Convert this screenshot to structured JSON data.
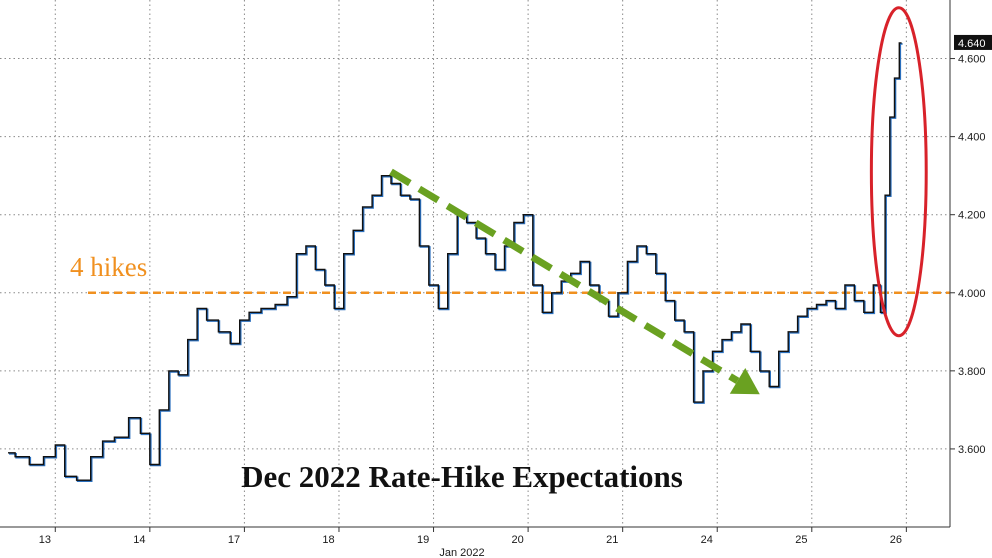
{
  "chart_data": {
    "type": "line",
    "title": "Dec 2022 Rate-Hike Expectations",
    "xlabel": "Jan 2022",
    "ylabel": "",
    "ylim": [
      3.4,
      4.75
    ],
    "yticks": [
      3.6,
      3.8,
      4.0,
      4.2,
      4.4,
      4.6
    ],
    "ytick_labels": [
      "3.600",
      "3.800",
      "4.000",
      "4.200",
      "4.400",
      "4.600"
    ],
    "x_categories": [
      "13",
      "14",
      "17",
      "18",
      "19",
      "20",
      "21",
      "24",
      "25",
      "26"
    ],
    "grid": true,
    "legend": "none",
    "last_value": 4.64,
    "last_value_label": "4.640",
    "series": [
      {
        "values": [
          [
            0.0,
            3.59
          ],
          [
            0.15,
            3.58
          ],
          [
            0.3,
            3.56
          ],
          [
            0.45,
            3.58
          ],
          [
            0.55,
            3.61
          ],
          [
            0.65,
            3.53
          ],
          [
            0.8,
            3.52
          ],
          [
            0.95,
            3.58
          ],
          [
            1.05,
            3.62
          ],
          [
            1.2,
            3.63
          ],
          [
            1.35,
            3.68
          ],
          [
            1.45,
            3.64
          ],
          [
            1.55,
            3.56
          ],
          [
            1.65,
            3.7
          ],
          [
            1.75,
            3.8
          ],
          [
            1.85,
            3.79
          ],
          [
            1.95,
            3.88
          ],
          [
            2.05,
            3.96
          ],
          [
            2.15,
            3.93
          ],
          [
            2.3,
            3.9
          ],
          [
            2.4,
            3.87
          ],
          [
            2.5,
            3.93
          ],
          [
            2.6,
            3.95
          ],
          [
            2.75,
            3.96
          ],
          [
            2.9,
            3.97
          ],
          [
            3.0,
            3.99
          ],
          [
            3.1,
            4.1
          ],
          [
            3.2,
            4.12
          ],
          [
            3.3,
            4.06
          ],
          [
            3.4,
            4.02
          ],
          [
            3.5,
            3.96
          ],
          [
            3.6,
            4.1
          ],
          [
            3.7,
            4.16
          ],
          [
            3.8,
            4.22
          ],
          [
            3.9,
            4.25
          ],
          [
            4.0,
            4.3
          ],
          [
            4.1,
            4.28
          ],
          [
            4.2,
            4.25
          ],
          [
            4.3,
            4.24
          ],
          [
            4.4,
            4.12
          ],
          [
            4.5,
            4.02
          ],
          [
            4.6,
            3.96
          ],
          [
            4.7,
            4.1
          ],
          [
            4.8,
            4.2
          ],
          [
            4.9,
            4.18
          ],
          [
            5.0,
            4.14
          ],
          [
            5.1,
            4.1
          ],
          [
            5.2,
            4.06
          ],
          [
            5.3,
            4.12
          ],
          [
            5.4,
            4.18
          ],
          [
            5.5,
            4.2
          ],
          [
            5.6,
            4.02
          ],
          [
            5.7,
            3.95
          ],
          [
            5.8,
            4.0
          ],
          [
            5.9,
            4.03
          ],
          [
            6.0,
            4.05
          ],
          [
            6.1,
            4.08
          ],
          [
            6.2,
            4.02
          ],
          [
            6.3,
            3.98
          ],
          [
            6.4,
            3.94
          ],
          [
            6.5,
            4.0
          ],
          [
            6.6,
            4.08
          ],
          [
            6.7,
            4.12
          ],
          [
            6.8,
            4.1
          ],
          [
            6.9,
            4.05
          ],
          [
            7.0,
            3.98
          ],
          [
            7.1,
            3.93
          ],
          [
            7.2,
            3.9
          ],
          [
            7.3,
            3.72
          ],
          [
            7.4,
            3.8
          ],
          [
            7.5,
            3.85
          ],
          [
            7.6,
            3.88
          ],
          [
            7.7,
            3.9
          ],
          [
            7.8,
            3.92
          ],
          [
            7.9,
            3.85
          ],
          [
            8.0,
            3.8
          ],
          [
            8.1,
            3.76
          ],
          [
            8.2,
            3.85
          ],
          [
            8.3,
            3.9
          ],
          [
            8.4,
            3.94
          ],
          [
            8.5,
            3.96
          ],
          [
            8.6,
            3.97
          ],
          [
            8.7,
            3.98
          ],
          [
            8.8,
            3.96
          ],
          [
            8.9,
            4.02
          ],
          [
            9.0,
            3.98
          ],
          [
            9.1,
            3.95
          ],
          [
            9.2,
            4.02
          ],
          [
            9.25,
            3.95
          ],
          [
            9.3,
            4.25
          ],
          [
            9.35,
            4.45
          ],
          [
            9.4,
            4.55
          ],
          [
            9.45,
            4.64
          ]
        ]
      }
    ],
    "annotations": {
      "four_hikes_label": "4 hikes",
      "four_hikes_level": 4.0,
      "trend_arrow_from": [
        4.05,
        4.31
      ],
      "trend_arrow_to": [
        7.95,
        3.74
      ],
      "highlight_ellipse_center": [
        9.42,
        4.31
      ],
      "highlight_ellipse_rx": 0.29,
      "highlight_ellipse_ry_units": 0.42
    },
    "colors": {
      "line": "#111111",
      "line_accent": "#2a6fbd",
      "hikes": "#f0901f",
      "arrow": "#6aa121",
      "ellipse": "#d8222a",
      "last_label_bg": "#111111"
    }
  }
}
